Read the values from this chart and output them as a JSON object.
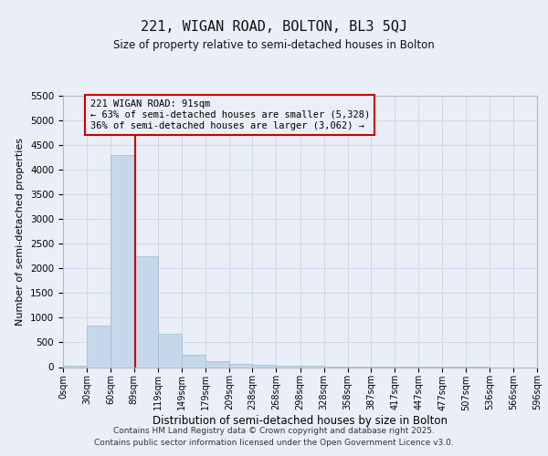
{
  "title": "221, WIGAN ROAD, BOLTON, BL3 5QJ",
  "subtitle": "Size of property relative to semi-detached houses in Bolton",
  "xlabel": "Distribution of semi-detached houses by size in Bolton",
  "ylabel": "Number of semi-detached properties",
  "bin_labels": [
    "0sqm",
    "30sqm",
    "60sqm",
    "89sqm",
    "119sqm",
    "149sqm",
    "179sqm",
    "209sqm",
    "238sqm",
    "268sqm",
    "298sqm",
    "328sqm",
    "358sqm",
    "387sqm",
    "417sqm",
    "447sqm",
    "477sqm",
    "507sqm",
    "536sqm",
    "566sqm",
    "596sqm"
  ],
  "bin_edges": [
    0,
    30,
    60,
    89,
    119,
    149,
    179,
    209,
    238,
    268,
    298,
    328,
    358,
    387,
    417,
    447,
    477,
    507,
    536,
    566,
    596
  ],
  "bar_heights": [
    30,
    850,
    4300,
    2250,
    680,
    250,
    120,
    70,
    50,
    30,
    20,
    10,
    5,
    3,
    2,
    1,
    1,
    1,
    0,
    0
  ],
  "bar_color": "#c5d8ea",
  "bar_edge_color": "#9ab8d0",
  "grid_color": "#cdd8e8",
  "background_color": "#eaeff7",
  "ref_line_x": 91,
  "ref_line_color": "#cc0000",
  "annotation_text": "221 WIGAN ROAD: 91sqm\n← 63% of semi-detached houses are smaller (5,328)\n36% of semi-detached houses are larger (3,062) →",
  "annotation_box_color": "#cc0000",
  "ylim": [
    0,
    5500
  ],
  "yticks": [
    0,
    500,
    1000,
    1500,
    2000,
    2500,
    3000,
    3500,
    4000,
    4500,
    5000,
    5500
  ],
  "footer_line1": "Contains HM Land Registry data © Crown copyright and database right 2025.",
  "footer_line2": "Contains public sector information licensed under the Open Government Licence v3.0."
}
